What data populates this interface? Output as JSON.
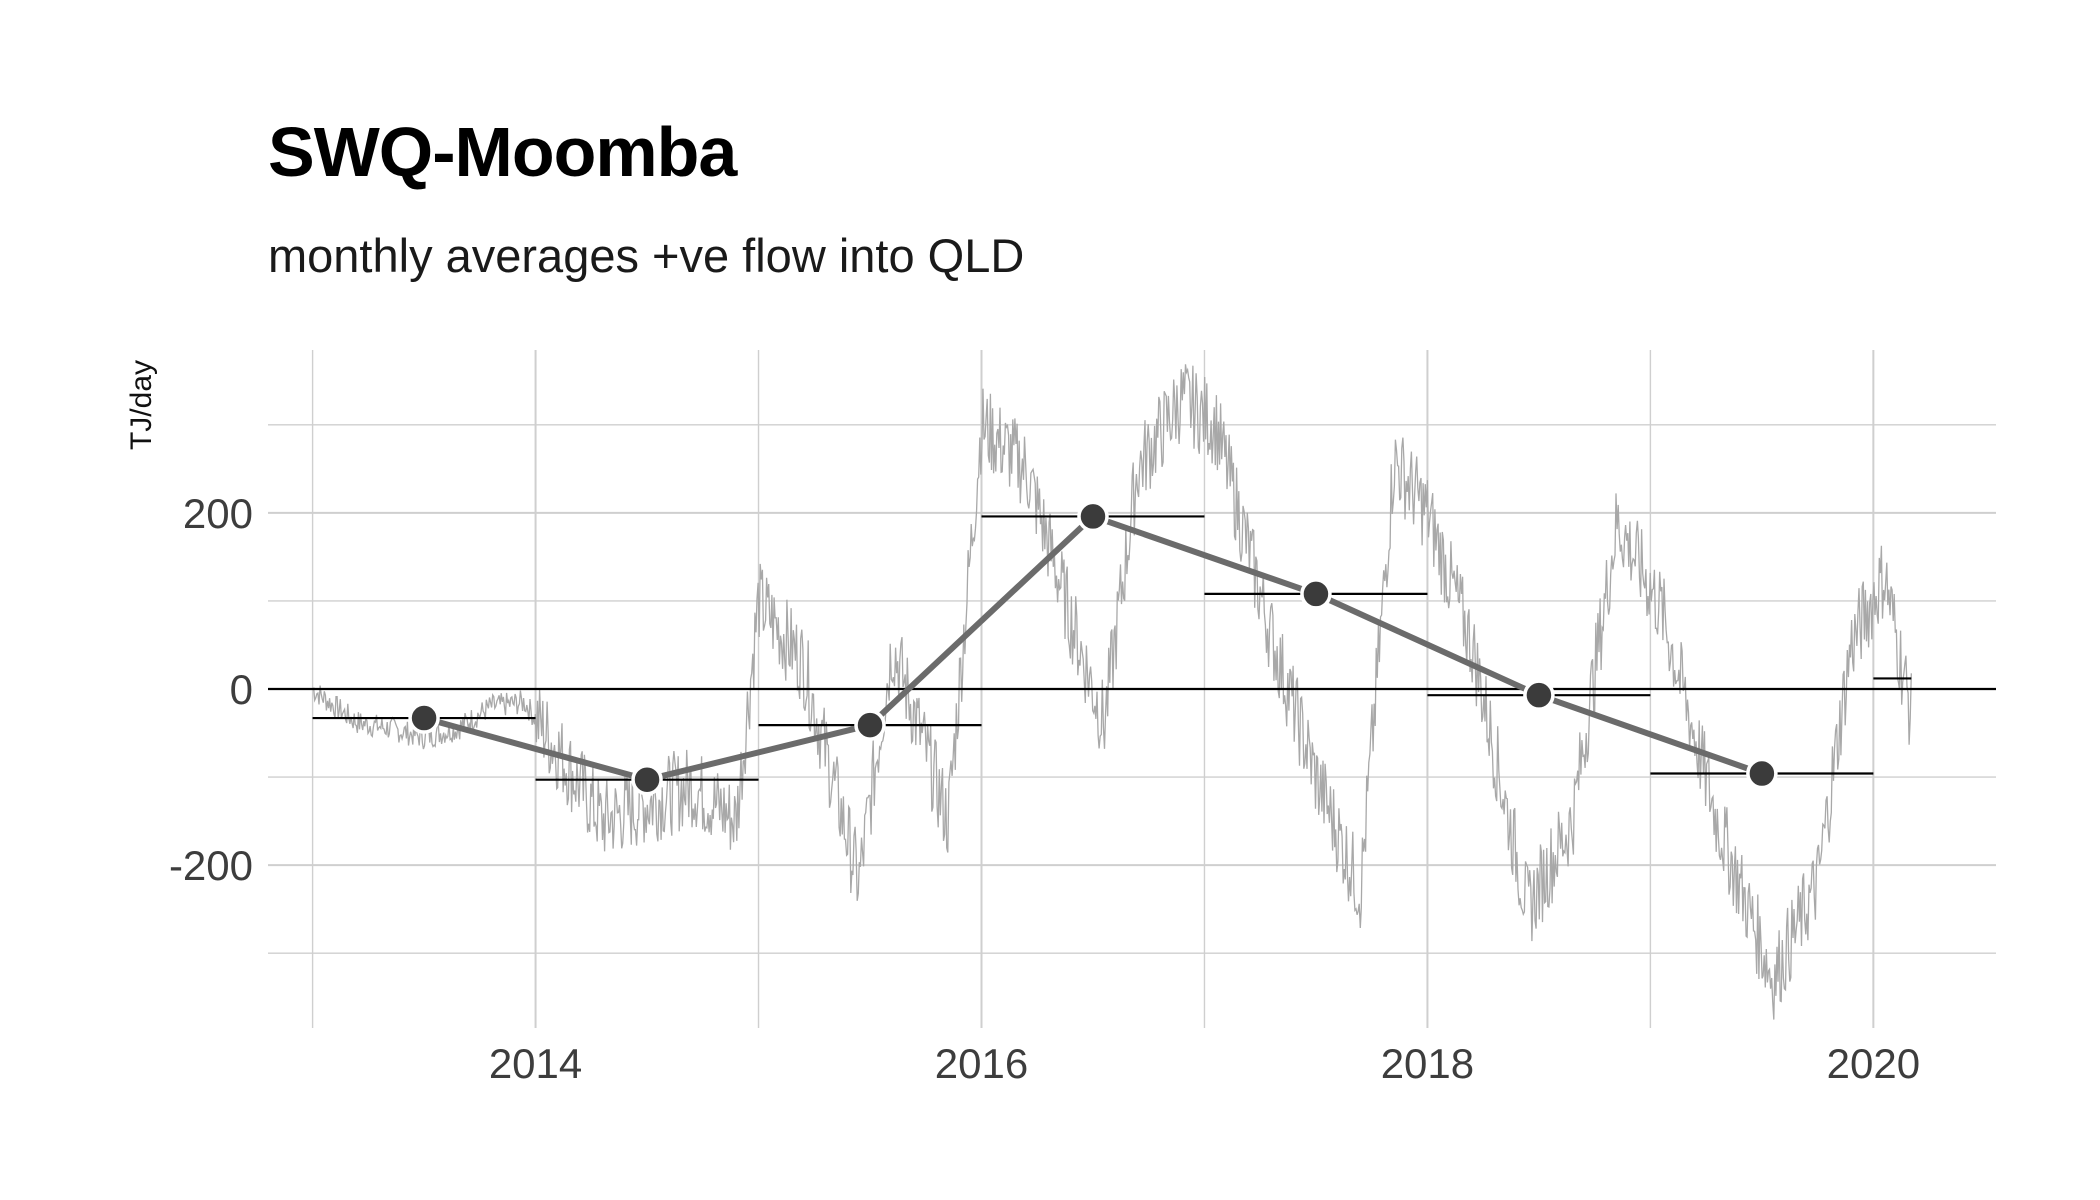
{
  "chart_data": {
    "type": "line",
    "title": "SWQ-Moomba",
    "subtitle": "monthly averages +ve flow into QLD",
    "ylabel": "TJ/day",
    "xlabel": "",
    "xlim": [
      2012.8,
      2020.55
    ],
    "ylim": [
      -385,
      385
    ],
    "x_ticks": [
      2014,
      2016,
      2018,
      2020
    ],
    "x_tick_labels": [
      "2014",
      "2016",
      "2018",
      "2020"
    ],
    "y_ticks": [
      -200,
      0,
      200
    ],
    "y_tick_labels": [
      "-200",
      "0",
      "200"
    ],
    "grid": true,
    "colors": {
      "daily": "#a8a8a8",
      "mean_line": "#6b6b6b",
      "point": "#3b3b3b",
      "segment": "#000000"
    },
    "series": [
      {
        "kind": "annual-mean-points",
        "values": [
          {
            "x": 2013.5,
            "y": -33
          },
          {
            "x": 2014.5,
            "y": -103
          },
          {
            "x": 2015.5,
            "y": -41
          },
          {
            "x": 2016.5,
            "y": 196
          },
          {
            "x": 2017.5,
            "y": 108
          },
          {
            "x": 2018.5,
            "y": -7
          },
          {
            "x": 2019.5,
            "y": -96
          }
        ]
      },
      {
        "kind": "annual-mean-segments",
        "values": [
          {
            "x0": 2013.0,
            "x1": 2014.0,
            "y": -33
          },
          {
            "x0": 2014.0,
            "x1": 2015.0,
            "y": -103
          },
          {
            "x0": 2015.0,
            "x1": 2016.0,
            "y": -41
          },
          {
            "x0": 2016.0,
            "x1": 2017.0,
            "y": 196
          },
          {
            "x0": 2017.0,
            "x1": 2018.0,
            "y": 108
          },
          {
            "x0": 2018.0,
            "x1": 2019.0,
            "y": -7
          },
          {
            "x0": 2019.0,
            "x1": 2020.0,
            "y": -96
          },
          {
            "x0": 2020.0,
            "x1": 2020.17,
            "y": 12
          }
        ]
      },
      {
        "kind": "daily-flow-envelope",
        "values": [
          {
            "x": 2013.0,
            "y": 0
          },
          {
            "x": 2013.1,
            "y": -20
          },
          {
            "x": 2013.2,
            "y": -38
          },
          {
            "x": 2013.35,
            "y": -45
          },
          {
            "x": 2013.5,
            "y": -55
          },
          {
            "x": 2013.65,
            "y": -45
          },
          {
            "x": 2013.8,
            "y": -20
          },
          {
            "x": 2013.95,
            "y": -15
          },
          {
            "x": 2014.1,
            "y": -70
          },
          {
            "x": 2014.3,
            "y": -150
          },
          {
            "x": 2014.5,
            "y": -130
          },
          {
            "x": 2014.7,
            "y": -110
          },
          {
            "x": 2014.9,
            "y": -150
          },
          {
            "x": 2015.0,
            "y": 100
          },
          {
            "x": 2015.2,
            "y": 30
          },
          {
            "x": 2015.45,
            "y": -220
          },
          {
            "x": 2015.6,
            "y": 50
          },
          {
            "x": 2015.85,
            "y": -150
          },
          {
            "x": 2016.0,
            "y": 300
          },
          {
            "x": 2016.2,
            "y": 250
          },
          {
            "x": 2016.4,
            "y": 80
          },
          {
            "x": 2016.55,
            "y": -40
          },
          {
            "x": 2016.7,
            "y": 250
          },
          {
            "x": 2016.9,
            "y": 330
          },
          {
            "x": 2017.05,
            "y": 300
          },
          {
            "x": 2017.3,
            "y": 60
          },
          {
            "x": 2017.5,
            "y": -100
          },
          {
            "x": 2017.7,
            "y": -230
          },
          {
            "x": 2017.85,
            "y": 260
          },
          {
            "x": 2018.0,
            "y": 200
          },
          {
            "x": 2018.2,
            "y": 50
          },
          {
            "x": 2018.45,
            "y": -250
          },
          {
            "x": 2018.65,
            "y": -150
          },
          {
            "x": 2018.85,
            "y": 190
          },
          {
            "x": 2019.05,
            "y": 90
          },
          {
            "x": 2019.3,
            "y": -150
          },
          {
            "x": 2019.55,
            "y": -330
          },
          {
            "x": 2019.75,
            "y": -220
          },
          {
            "x": 2019.9,
            "y": 50
          },
          {
            "x": 2020.05,
            "y": 130
          },
          {
            "x": 2020.17,
            "y": -30
          }
        ]
      }
    ]
  }
}
